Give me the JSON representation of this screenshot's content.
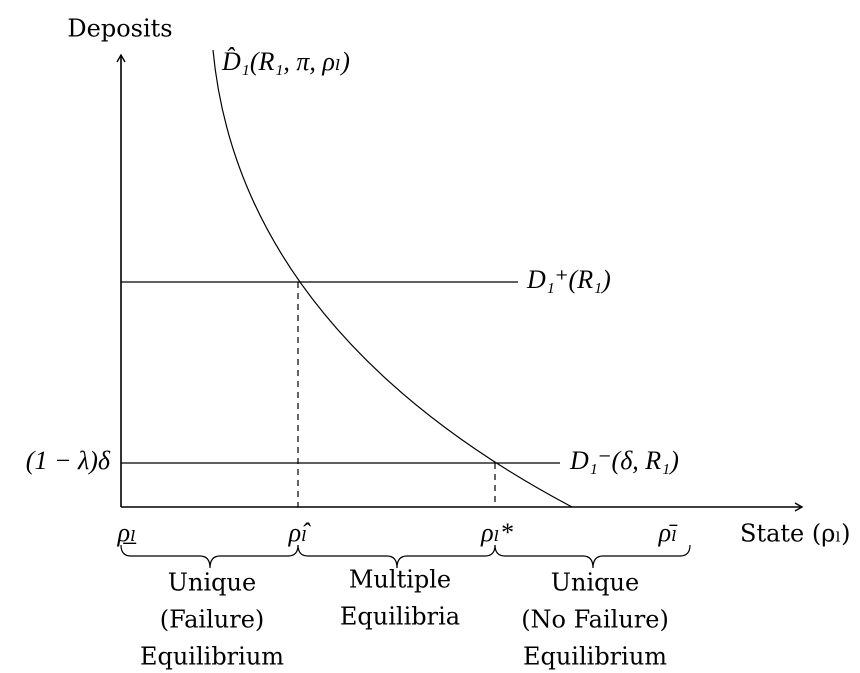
{
  "axes": {
    "y_label": "Deposits",
    "x_label": "State (ρₗ)"
  },
  "curves": {
    "demand": "D̂₁(R₁, π, ρₗ)",
    "upper": "D₁⁺(R₁)",
    "lower": "D₁⁻(δ, R₁)",
    "lower_level": "(1 − λ)δ"
  },
  "x_markers": [
    "ρ̲ₗ",
    "ρ̂ₗ",
    "ρₗ*",
    "ρ̄ₗ"
  ],
  "regions": [
    {
      "lines": [
        "Unique",
        "(Failure)",
        "Equilibrium"
      ]
    },
    {
      "lines": [
        "Multiple",
        "Equilibria"
      ]
    },
    {
      "lines": [
        "Unique",
        "(No Failure)",
        "Equilibrium"
      ]
    }
  ]
}
